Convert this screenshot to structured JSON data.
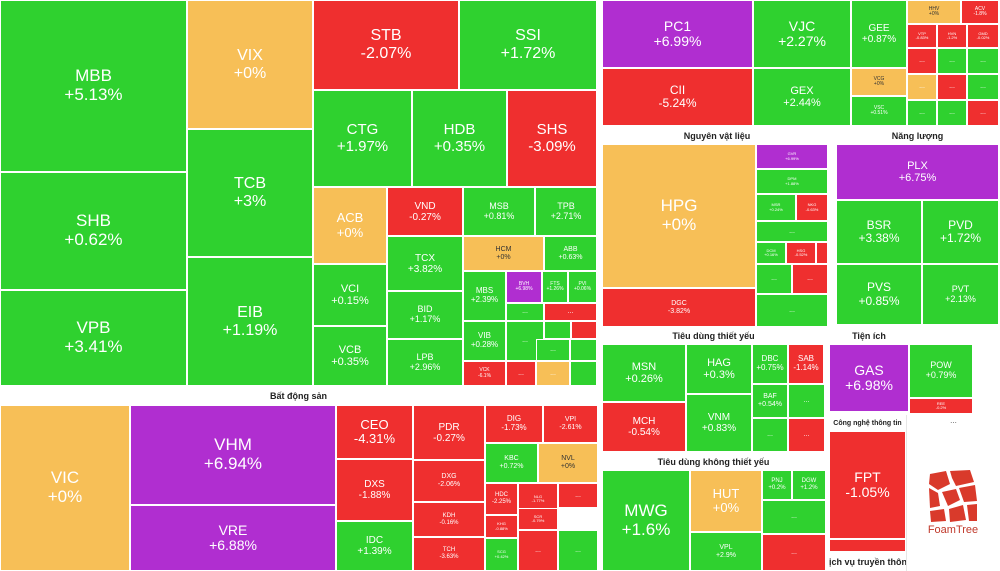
{
  "colors": {
    "up": "#2fd12f",
    "down": "#ef2f2f",
    "flat": "#f7bf57",
    "ceiling": "#b02ed0",
    "floor": "#2fc8e6"
  },
  "chart_data": {
    "type": "heatmap",
    "subtype": "treemap",
    "sectors": [
      {
        "name": "",
        "stocks": [
          {
            "ticker": "MBB",
            "change": "+5.13%",
            "value": 5.13
          },
          {
            "ticker": "SHB",
            "change": "+0.62%",
            "value": 0.62
          },
          {
            "ticker": "VPB",
            "change": "+3.41%",
            "value": 3.41
          },
          {
            "ticker": "VIX",
            "change": "+0%",
            "value": 0
          },
          {
            "ticker": "TCB",
            "change": "+3%",
            "value": 3
          },
          {
            "ticker": "EIB",
            "change": "+1.19%",
            "value": 1.19
          },
          {
            "ticker": "STB",
            "change": "-2.07%",
            "value": -2.07
          },
          {
            "ticker": "SSI",
            "change": "+1.72%",
            "value": 1.72
          },
          {
            "ticker": "CTG",
            "change": "+1.97%",
            "value": 1.97
          },
          {
            "ticker": "HDB",
            "change": "+0.35%",
            "value": 0.35
          },
          {
            "ticker": "SHS",
            "change": "-3.09%",
            "value": -3.09
          },
          {
            "ticker": "ACB",
            "change": "+0%",
            "value": 0
          },
          {
            "ticker": "VND",
            "change": "-0.27%",
            "value": -0.27
          },
          {
            "ticker": "MSB",
            "change": "+0.81%",
            "value": 0.81
          },
          {
            "ticker": "TPB",
            "change": "+2.71%",
            "value": 2.71
          },
          {
            "ticker": "VCI",
            "change": "+0.15%",
            "value": 0.15
          },
          {
            "ticker": "VCB",
            "change": "+0.35%",
            "value": 0.35
          },
          {
            "ticker": "TCX",
            "change": "+3.82%",
            "value": 3.82
          },
          {
            "ticker": "BID",
            "change": "+1.17%",
            "value": 1.17
          },
          {
            "ticker": "LPB",
            "change": "+2.96%",
            "value": 2.96
          },
          {
            "ticker": "HCM",
            "change": "+0%",
            "value": 0
          },
          {
            "ticker": "ABB",
            "change": "+0.63%",
            "value": 0.63
          },
          {
            "ticker": "MBS",
            "change": "+2.39%",
            "value": 2.39
          },
          {
            "ticker": "BVH",
            "change": "+6.98%",
            "value": 6.98
          },
          {
            "ticker": "FTS",
            "change": "+1.26%",
            "value": 1.26
          },
          {
            "ticker": "PVI",
            "change": "+0.06%",
            "value": 0.06
          },
          {
            "ticker": "VIB",
            "change": "+0.28%",
            "value": 0.28
          },
          {
            "ticker": "VCK",
            "change": "-6.1%",
            "value": -6.1
          }
        ]
      },
      {
        "name": "Bất động sản",
        "stocks": [
          {
            "ticker": "VIC",
            "change": "+0%",
            "value": 0
          },
          {
            "ticker": "VHM",
            "change": "+6.94%",
            "value": 6.94
          },
          {
            "ticker": "VRE",
            "change": "+6.88%",
            "value": 6.88
          },
          {
            "ticker": "CEO",
            "change": "-4.31%",
            "value": -4.31
          },
          {
            "ticker": "DXS",
            "change": "-1.88%",
            "value": -1.88
          },
          {
            "ticker": "IDC",
            "change": "+1.39%",
            "value": 1.39
          },
          {
            "ticker": "PDR",
            "change": "-0.27%",
            "value": -0.27
          },
          {
            "ticker": "DXG",
            "change": "-2.06%",
            "value": -2.06
          },
          {
            "ticker": "KDH",
            "change": "-0.16%",
            "value": -0.16
          },
          {
            "ticker": "TCH",
            "change": "-3.63%",
            "value": -3.63
          },
          {
            "ticker": "DIG",
            "change": "-1.73%",
            "value": -1.73
          },
          {
            "ticker": "VPI",
            "change": "-2.61%",
            "value": -2.61
          },
          {
            "ticker": "KBC",
            "change": "+0.72%",
            "value": 0.72
          },
          {
            "ticker": "NVL",
            "change": "+0%",
            "value": 0
          },
          {
            "ticker": "HDC",
            "change": "-2.25%",
            "value": -2.25
          },
          {
            "ticker": "NLG",
            "change": "-1.77%",
            "value": -1.77
          },
          {
            "ticker": "SCR",
            "change": "-0.79%",
            "value": -0.79
          },
          {
            "ticker": "KHG",
            "change": "-0.88%",
            "value": -0.88
          },
          {
            "ticker": "SCG",
            "change": "+0.42%",
            "value": 0.42
          }
        ]
      },
      {
        "name": "",
        "stocks": [
          {
            "ticker": "PC1",
            "change": "+6.99%",
            "value": 6.99
          },
          {
            "ticker": "CII",
            "change": "-5.24%",
            "value": -5.24
          },
          {
            "ticker": "VJC",
            "change": "+2.27%",
            "value": 2.27
          },
          {
            "ticker": "GEX",
            "change": "+2.44%",
            "value": 2.44
          },
          {
            "ticker": "GEE",
            "change": "+0.87%",
            "value": 0.87
          },
          {
            "ticker": "VCG",
            "change": "+0%",
            "value": 0
          },
          {
            "ticker": "VSC",
            "change": "+0.51%",
            "value": 0.51
          },
          {
            "ticker": "HHV",
            "change": "+0%",
            "value": 0
          },
          {
            "ticker": "ACV",
            "change": "-1.8%",
            "value": -1.8
          },
          {
            "ticker": "VTP",
            "change": "-0.83%",
            "value": -0.83
          },
          {
            "ticker": "HVN",
            "change": "-1.2%",
            "value": -1.2
          },
          {
            "ticker": "GMD",
            "change": "-0.02%",
            "value": -0.02
          }
        ]
      },
      {
        "name": "Nguyên vật liệu",
        "stocks": [
          {
            "ticker": "HPG",
            "change": "+0%",
            "value": 0
          },
          {
            "ticker": "DGC",
            "change": "-3.82%",
            "value": -3.82
          },
          {
            "ticker": "GVR",
            "change": "+6.99%",
            "value": 6.99
          },
          {
            "ticker": "DPM",
            "change": "+1.88%",
            "value": 1.88
          },
          {
            "ticker": "MSR",
            "change": "+0.24%",
            "value": 0.24
          },
          {
            "ticker": "NKG",
            "change": "-0.63%",
            "value": -0.63
          },
          {
            "ticker": "DCM",
            "change": "+0.16%",
            "value": 0.16
          },
          {
            "ticker": "HSG",
            "change": "-0.52%",
            "value": -0.52
          }
        ]
      },
      {
        "name": "Năng lượng",
        "stocks": [
          {
            "ticker": "PLX",
            "change": "+6.75%",
            "value": 6.75
          },
          {
            "ticker": "BSR",
            "change": "+3.38%",
            "value": 3.38
          },
          {
            "ticker": "PVD",
            "change": "+1.72%",
            "value": 1.72
          },
          {
            "ticker": "PVS",
            "change": "+0.85%",
            "value": 0.85
          },
          {
            "ticker": "PVT",
            "change": "+2.13%",
            "value": 2.13
          }
        ]
      },
      {
        "name": "Tiêu dùng thiết yếu",
        "stocks": [
          {
            "ticker": "MSN",
            "change": "+0.26%",
            "value": 0.26
          },
          {
            "ticker": "MCH",
            "change": "-0.54%",
            "value": -0.54
          },
          {
            "ticker": "HAG",
            "change": "+0.3%",
            "value": 0.3
          },
          {
            "ticker": "VNM",
            "change": "+0.83%",
            "value": 0.83
          },
          {
            "ticker": "DBC",
            "change": "+0.75%",
            "value": 0.75
          },
          {
            "ticker": "SAB",
            "change": "-1.14%",
            "value": -1.14
          },
          {
            "ticker": "BAF",
            "change": "+0.54%",
            "value": 0.54
          }
        ]
      },
      {
        "name": "Tiện ích",
        "stocks": [
          {
            "ticker": "GAS",
            "change": "+6.98%",
            "value": 6.98
          },
          {
            "ticker": "POW",
            "change": "+0.79%",
            "value": 0.79
          },
          {
            "ticker": "REE",
            "change": "-0.2%",
            "value": -0.2
          }
        ]
      },
      {
        "name": "Tiêu dùng không thiết yếu",
        "stocks": [
          {
            "ticker": "MWG",
            "change": "+1.6%",
            "value": 1.6
          },
          {
            "ticker": "HUT",
            "change": "+0%",
            "value": 0
          },
          {
            "ticker": "VPL",
            "change": "+2.9%",
            "value": 2.9
          },
          {
            "ticker": "PNJ",
            "change": "+0.2%",
            "value": 0.2
          },
          {
            "ticker": "DGW",
            "change": "+1.2%",
            "value": 1.2
          }
        ]
      },
      {
        "name": "Công nghệ thông tin",
        "stocks": [
          {
            "ticker": "FPT",
            "change": "-1.05%",
            "value": -1.05
          }
        ]
      },
      {
        "name": "Dịch vụ truyền thông",
        "stocks": []
      }
    ]
  },
  "more_label": "...",
  "brand": "FoamTree"
}
